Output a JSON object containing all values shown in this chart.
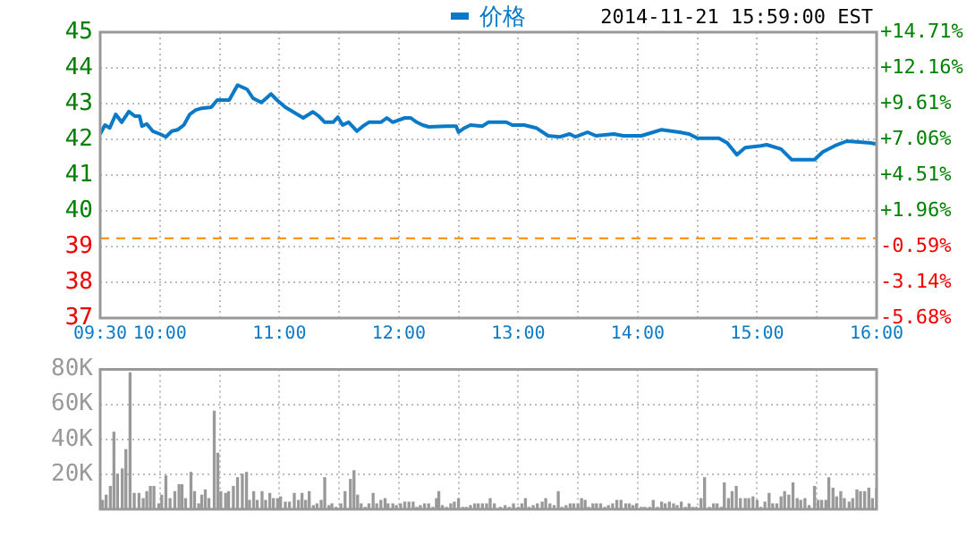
{
  "chart_data": [
    {
      "type": "line",
      "legend": "top",
      "grid": true,
      "marker": "none",
      "line_style": "solid",
      "annotations": [
        "2014-11-21 15:59:00 EST"
      ],
      "xlim": [
        9.5,
        16
      ],
      "xticks": [
        {
          "value": 9.5,
          "label": "09:30"
        },
        {
          "value": 10,
          "label": "10:00"
        },
        {
          "value": 10.5,
          "label": null
        },
        {
          "value": 11,
          "label": "11:00"
        },
        {
          "value": 11.5,
          "label": null
        },
        {
          "value": 12,
          "label": "12:00"
        },
        {
          "value": 12.5,
          "label": null
        },
        {
          "value": 13,
          "label": "13:00"
        },
        {
          "value": 13.5,
          "label": null
        },
        {
          "value": 14,
          "label": "14:00"
        },
        {
          "value": 14.5,
          "label": null
        },
        {
          "value": 15,
          "label": "15:00"
        },
        {
          "value": 15.5,
          "label": null
        },
        {
          "value": 16,
          "label": "16:00"
        }
      ],
      "ylim": [
        37,
        45
      ],
      "yticks": [
        37,
        38,
        39,
        40,
        41,
        42,
        43,
        44,
        45
      ],
      "y2lim": [
        -5.68,
        14.71
      ],
      "y2ticks": [
        {
          "value": -5.68,
          "label": "-5.68%"
        },
        {
          "value": -3.14,
          "label": "-3.14%"
        },
        {
          "value": -0.59,
          "label": "-0.59%"
        },
        {
          "value": 1.96,
          "label": "+1.96%"
        },
        {
          "value": 4.51,
          "label": "+4.51%"
        },
        {
          "value": 7.06,
          "label": "+7.06%"
        },
        {
          "value": 9.61,
          "label": "+9.61%"
        },
        {
          "value": 12.16,
          "label": "+12.16%"
        },
        {
          "value": 14.71,
          "label": "+14.71%"
        }
      ],
      "ref_lines": [
        {
          "axis": "y",
          "value": 39.23,
          "color": "#ff8800",
          "line_style": "dashed"
        }
      ],
      "series": [
        {
          "name": "价格",
          "color": "#0a7ac8",
          "x": [
            9.5,
            9.54,
            9.58,
            9.63,
            9.68,
            9.74,
            9.79,
            9.83,
            9.85,
            9.89,
            9.94,
            10.0,
            10.05,
            10.1,
            10.15,
            10.2,
            10.25,
            10.3,
            10.35,
            10.43,
            10.48,
            10.58,
            10.65,
            10.73,
            10.78,
            10.85,
            10.93,
            10.98,
            11.05,
            11.15,
            11.2,
            11.28,
            11.33,
            11.38,
            11.45,
            11.49,
            11.53,
            11.58,
            11.65,
            11.7,
            11.75,
            11.85,
            11.9,
            11.95,
            12.05,
            12.1,
            12.15,
            12.2,
            12.25,
            12.4,
            12.48,
            12.5,
            12.55,
            12.6,
            12.7,
            12.75,
            12.8,
            12.9,
            12.95,
            13.05,
            13.15,
            13.25,
            13.35,
            13.43,
            13.48,
            13.58,
            13.65,
            13.8,
            13.88,
            14.03,
            14.13,
            14.2,
            14.35,
            14.43,
            14.5,
            14.68,
            14.75,
            14.83,
            14.9,
            15.03,
            15.08,
            15.2,
            15.29,
            15.48,
            15.55,
            15.65,
            15.75,
            15.83,
            15.95,
            16.0
          ],
          "values": [
            42.15,
            42.4,
            42.32,
            42.7,
            42.48,
            42.78,
            42.65,
            42.65,
            42.37,
            42.43,
            42.23,
            42.15,
            42.07,
            42.23,
            42.27,
            42.4,
            42.7,
            42.82,
            42.87,
            42.9,
            43.1,
            43.1,
            43.52,
            43.4,
            43.15,
            43.03,
            43.27,
            43.1,
            42.9,
            42.7,
            42.6,
            42.77,
            42.65,
            42.48,
            42.48,
            42.62,
            42.4,
            42.48,
            42.23,
            42.37,
            42.48,
            42.48,
            42.6,
            42.48,
            42.6,
            42.6,
            42.48,
            42.4,
            42.35,
            42.37,
            42.37,
            42.2,
            42.32,
            42.4,
            42.37,
            42.48,
            42.48,
            42.48,
            42.4,
            42.4,
            42.32,
            42.1,
            42.07,
            42.15,
            42.07,
            42.2,
            42.1,
            42.15,
            42.1,
            42.1,
            42.2,
            42.27,
            42.2,
            42.15,
            42.03,
            42.03,
            41.9,
            41.57,
            41.77,
            41.82,
            41.85,
            41.73,
            41.43,
            41.43,
            41.65,
            41.82,
            41.95,
            41.93,
            41.9,
            41.87
          ]
        }
      ]
    },
    {
      "type": "bar",
      "grid": true,
      "tick_labels": "y",
      "color": "#999999",
      "xlim": [
        9.5,
        16
      ],
      "xticks": [
        {
          "value": 9.5,
          "label": null
        },
        {
          "value": 10,
          "label": null
        },
        {
          "value": 10.5,
          "label": null
        },
        {
          "value": 11,
          "label": null
        },
        {
          "value": 11.5,
          "label": null
        },
        {
          "value": 12,
          "label": null
        },
        {
          "value": 12.5,
          "label": null
        },
        {
          "value": 13,
          "label": null
        },
        {
          "value": 13.5,
          "label": null
        },
        {
          "value": 14,
          "label": null
        },
        {
          "value": 14.5,
          "label": null
        },
        {
          "value": 15,
          "label": null
        },
        {
          "value": 15.5,
          "label": null
        },
        {
          "value": 16,
          "label": null
        }
      ],
      "ylim": [
        0,
        80
      ],
      "yticks": [
        {
          "value": 0,
          "label": null
        },
        {
          "value": 20,
          "label": "20K"
        },
        {
          "value": 40,
          "label": "40K"
        },
        {
          "value": 60,
          "label": "60K"
        },
        {
          "value": 80,
          "label": "80K"
        }
      ],
      "x": [
        9.52,
        9.55,
        9.585,
        9.615,
        9.645,
        9.685,
        9.715,
        9.75,
        9.785,
        9.825,
        9.86,
        9.89,
        9.92,
        9.95,
        9.99,
        10.015,
        10.05,
        10.085,
        10.125,
        10.16,
        10.185,
        10.215,
        10.26,
        10.29,
        10.325,
        10.35,
        10.38,
        10.41,
        10.455,
        10.485,
        10.51,
        10.55,
        10.575,
        10.615,
        10.65,
        10.69,
        10.725,
        10.75,
        10.785,
        10.815,
        10.855,
        10.885,
        10.92,
        10.95,
        10.985,
        11.01,
        11.05,
        11.085,
        11.125,
        11.16,
        11.19,
        11.22,
        11.25,
        11.285,
        11.315,
        11.35,
        11.38,
        11.415,
        11.44,
        11.475,
        11.515,
        11.55,
        11.595,
        11.625,
        11.655,
        11.685,
        11.72,
        11.75,
        11.785,
        11.815,
        11.85,
        11.885,
        11.91,
        11.95,
        11.98,
        12.015,
        12.05,
        12.085,
        12.12,
        12.15,
        12.18,
        12.215,
        12.25,
        12.285,
        12.315,
        12.335,
        12.365,
        12.4,
        12.435,
        12.465,
        12.5,
        12.535,
        12.565,
        12.6,
        12.635,
        12.665,
        12.7,
        12.735,
        12.765,
        12.8,
        12.85,
        12.89,
        12.925,
        12.96,
        13.0,
        13.03,
        13.06,
        13.09,
        13.125,
        13.16,
        13.2,
        13.23,
        13.265,
        13.3,
        13.335,
        13.365,
        13.4,
        13.435,
        13.465,
        13.5,
        13.53,
        13.56,
        13.59,
        13.625,
        13.655,
        13.69,
        13.725,
        13.755,
        13.79,
        13.825,
        13.86,
        13.9,
        13.93,
        13.96,
        13.99,
        14.03,
        14.06,
        14.1,
        14.13,
        14.165,
        14.2,
        14.23,
        14.265,
        14.3,
        14.33,
        14.365,
        14.4,
        14.43,
        14.46,
        14.49,
        14.53,
        14.56,
        14.6,
        14.635,
        14.665,
        14.7,
        14.725,
        14.76,
        14.79,
        14.825,
        14.86,
        14.9,
        14.93,
        14.965,
        15.0,
        15.03,
        15.065,
        15.1,
        15.13,
        15.165,
        15.2,
        15.23,
        15.265,
        15.3,
        15.335,
        15.365,
        15.4,
        15.435,
        15.48,
        15.51,
        15.54,
        15.575,
        15.6,
        15.635,
        15.665,
        15.7,
        15.73,
        15.77,
        15.8,
        15.835,
        15.865,
        15.9,
        15.935,
        15.965,
        16.0
      ],
      "values": [
        5,
        8,
        13,
        44,
        20,
        23,
        34,
        78,
        9,
        9,
        6,
        10,
        13,
        13,
        3,
        8,
        19,
        6,
        10,
        14,
        14,
        6,
        21,
        10,
        3,
        8,
        11,
        6,
        56,
        32,
        10,
        9,
        10,
        13,
        18,
        20,
        21,
        5,
        10,
        5,
        10,
        5,
        9,
        6,
        6,
        7,
        4,
        4,
        9,
        5,
        9,
        5,
        10,
        2,
        3,
        5,
        18,
        2,
        3,
        1,
        3,
        10,
        17,
        22,
        8,
        3,
        1,
        3,
        9,
        3,
        5,
        6,
        3,
        3,
        2,
        3,
        4,
        4,
        4,
        1,
        2,
        3,
        3,
        1,
        6,
        10,
        2,
        1,
        3,
        4,
        6,
        1,
        1,
        2,
        3,
        3,
        3,
        3,
        6,
        3,
        1,
        2,
        1,
        3,
        1,
        3,
        6,
        1,
        2,
        3,
        4,
        6,
        3,
        2,
        10,
        1,
        2,
        3,
        3,
        3,
        6,
        5,
        1,
        3,
        3,
        3,
        1,
        2,
        3,
        5,
        5,
        3,
        3,
        2,
        3,
        1,
        1,
        1,
        5,
        1,
        4,
        3,
        4,
        3,
        2,
        4,
        1,
        3,
        1,
        1,
        6,
        18,
        1,
        3,
        3,
        1,
        15,
        6,
        10,
        13,
        6,
        6,
        6,
        7,
        5,
        1,
        4,
        9,
        3,
        3,
        7,
        10,
        8,
        15,
        6,
        5,
        6,
        2,
        13,
        5,
        5,
        5,
        18,
        12,
        7,
        10,
        6,
        4,
        6,
        11,
        10,
        10,
        12,
        6,
        12
      ]
    }
  ]
}
